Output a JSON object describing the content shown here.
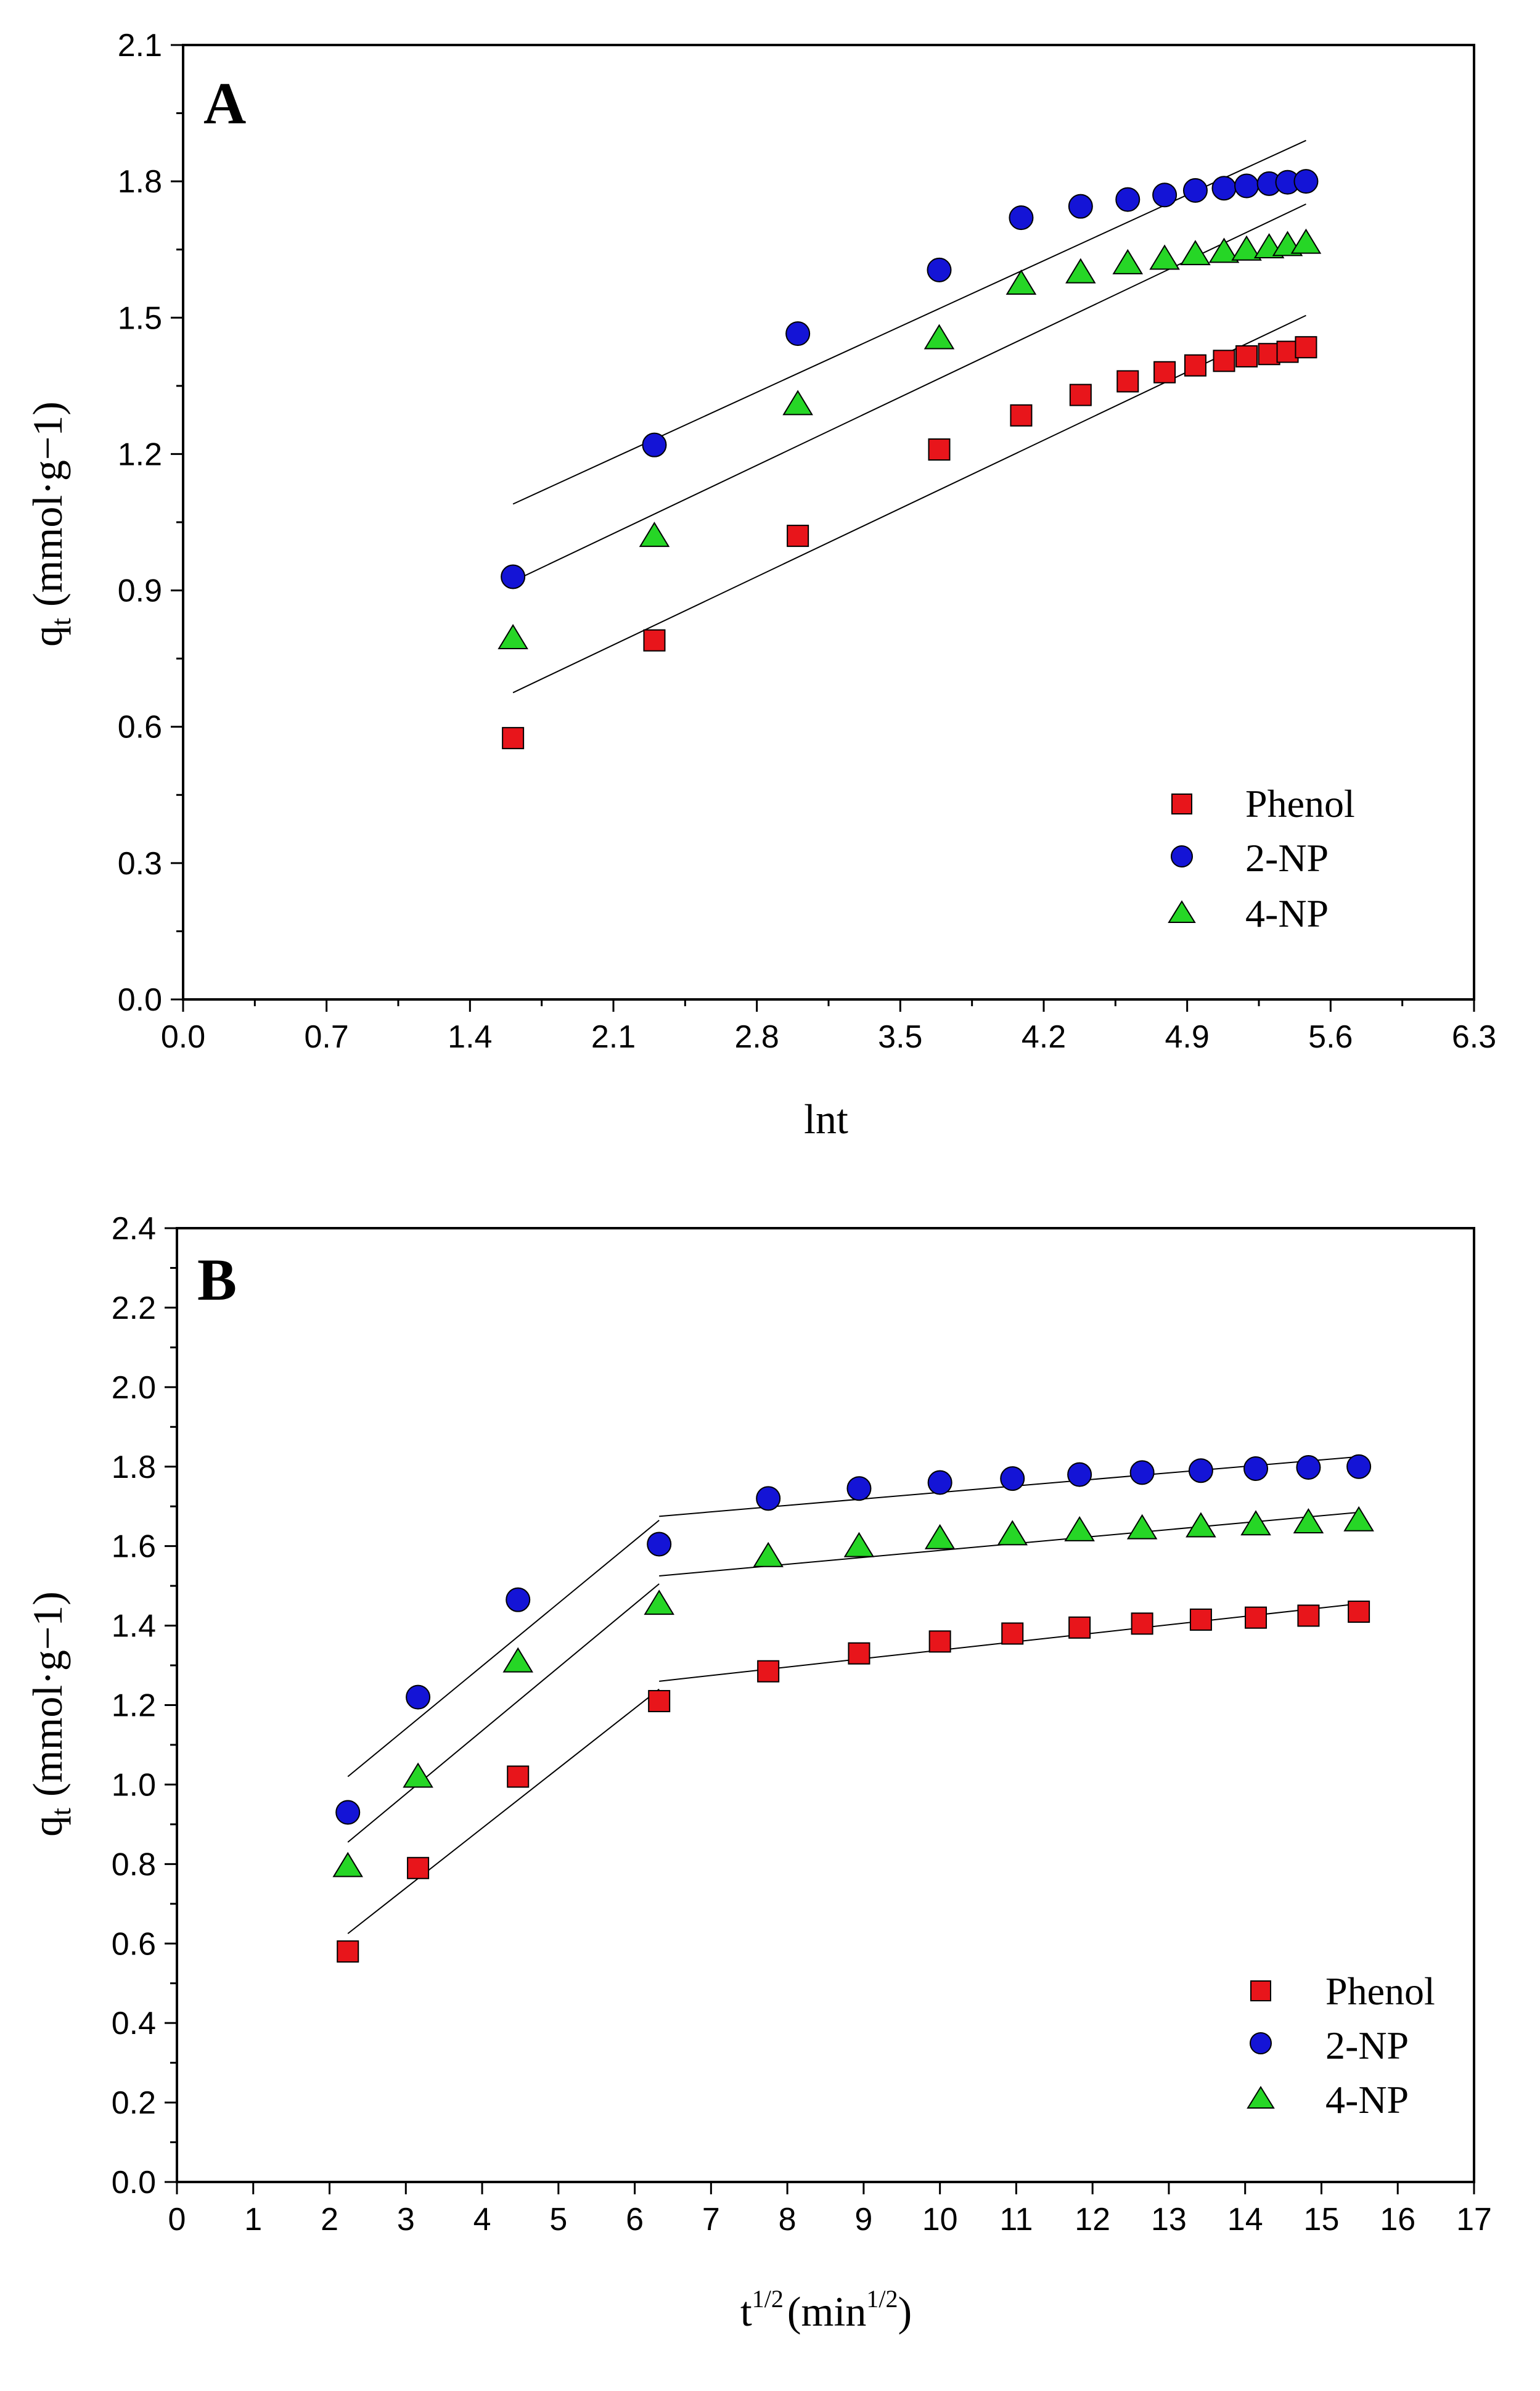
{
  "chart_data": [
    {
      "type": "scatter",
      "panel": "A",
      "title": "",
      "xlabel": "lnt",
      "ylabel": "q_t (mmol·g−1)",
      "ylabel_parts": {
        "base": "q",
        "sub": "t",
        "unit": "(mmol·g−1)"
      },
      "xlim": [
        0.0,
        6.3
      ],
      "ylim": [
        0.0,
        2.1
      ],
      "xticks": [
        "0.0",
        "0.7",
        "1.4",
        "2.1",
        "2.8",
        "3.5",
        "4.2",
        "4.9",
        "5.6",
        "6.3"
      ],
      "yticks": [
        "0.0",
        "0.3",
        "0.6",
        "0.9",
        "1.2",
        "1.5",
        "1.8",
        "2.1"
      ],
      "legend_position": "bottom-right",
      "series": [
        {
          "name": "Phenol",
          "marker": "square",
          "color": "#e8151b",
          "x": [
            1.61,
            2.3,
            3.0,
            3.69,
            4.09,
            4.38,
            4.61,
            4.79,
            4.94,
            5.08,
            5.19,
            5.3,
            5.39,
            5.48
          ],
          "y": [
            0.575,
            0.79,
            1.02,
            1.21,
            1.285,
            1.33,
            1.36,
            1.38,
            1.395,
            1.405,
            1.415,
            1.42,
            1.425,
            1.435
          ],
          "fit": {
            "x": [
              1.61,
              5.48
            ],
            "y": [
              0.675,
              1.505
            ]
          }
        },
        {
          "name": "2-NP",
          "marker": "circle",
          "color": "#1414d6",
          "x": [
            1.61,
            2.3,
            3.0,
            3.69,
            4.09,
            4.38,
            4.61,
            4.79,
            4.94,
            5.08,
            5.19,
            5.3,
            5.39,
            5.48
          ],
          "y": [
            0.93,
            1.22,
            1.465,
            1.605,
            1.72,
            1.745,
            1.76,
            1.77,
            1.78,
            1.785,
            1.79,
            1.795,
            1.798,
            1.8
          ],
          "fit": {
            "x": [
              1.61,
              5.48
            ],
            "y": [
              1.09,
              1.89
            ]
          }
        },
        {
          "name": "4-NP",
          "marker": "triangle",
          "color": "#26d626",
          "x": [
            1.61,
            2.3,
            3.0,
            3.69,
            4.09,
            4.38,
            4.61,
            4.79,
            4.94,
            5.08,
            5.19,
            5.3,
            5.39,
            5.48
          ],
          "y": [
            0.795,
            1.02,
            1.31,
            1.455,
            1.575,
            1.6,
            1.62,
            1.63,
            1.64,
            1.645,
            1.65,
            1.655,
            1.66,
            1.665
          ],
          "fit": {
            "x": [
              1.61,
              5.48
            ],
            "y": [
              0.92,
              1.75
            ]
          }
        }
      ]
    },
    {
      "type": "scatter",
      "panel": "B",
      "title": "",
      "xlabel": "t1/2 (min1/2)",
      "xlabel_parts": {
        "base": "t",
        "sup": "1/2",
        "unit_base": "(min",
        "unit_sup": "1/2",
        "unit_end": ")"
      },
      "ylabel": "q_t (mmol·g−1)",
      "ylabel_parts": {
        "base": "q",
        "sub": "t",
        "unit": "(mmol·g−1)"
      },
      "xlim": [
        0,
        17
      ],
      "ylim": [
        0.0,
        2.4
      ],
      "xticks": [
        "0",
        "1",
        "2",
        "3",
        "4",
        "5",
        "6",
        "7",
        "8",
        "9",
        "10",
        "11",
        "12",
        "13",
        "14",
        "15",
        "16",
        "17"
      ],
      "yticks": [
        "0.0",
        "0.2",
        "0.4",
        "0.6",
        "0.8",
        "1.0",
        "1.2",
        "1.4",
        "1.6",
        "1.8",
        "2.0",
        "2.2",
        "2.4"
      ],
      "legend_position": "bottom-right",
      "series": [
        {
          "name": "Phenol",
          "marker": "square",
          "color": "#e8151b",
          "x": [
            2.24,
            3.16,
            4.47,
            6.32,
            7.75,
            8.94,
            10.0,
            10.95,
            11.83,
            12.65,
            13.42,
            14.14,
            14.83,
            15.49
          ],
          "y": [
            0.58,
            0.79,
            1.02,
            1.21,
            1.285,
            1.33,
            1.36,
            1.38,
            1.395,
            1.405,
            1.415,
            1.42,
            1.425,
            1.435
          ],
          "fit": {
            "x": [
              2.24,
              6.32,
              6.32,
              15.49
            ],
            "y": [
              0.625,
              1.24,
              1.26,
              1.455
            ],
            "segments": [
              [
                0,
                1
              ],
              [
                2,
                3
              ]
            ]
          }
        },
        {
          "name": "2-NP",
          "marker": "circle",
          "color": "#1414d6",
          "x": [
            2.24,
            3.16,
            4.47,
            6.32,
            7.75,
            8.94,
            10.0,
            10.95,
            11.83,
            12.65,
            13.42,
            14.14,
            14.83,
            15.49
          ],
          "y": [
            0.93,
            1.22,
            1.465,
            1.605,
            1.72,
            1.745,
            1.76,
            1.77,
            1.78,
            1.785,
            1.79,
            1.795,
            1.798,
            1.8
          ],
          "fit": {
            "x": [
              2.24,
              6.32,
              6.32,
              15.49
            ],
            "y": [
              1.02,
              1.665,
              1.675,
              1.825
            ],
            "segments": [
              [
                0,
                1
              ],
              [
                2,
                3
              ]
            ]
          }
        },
        {
          "name": "4-NP",
          "marker": "triangle",
          "color": "#26d626",
          "x": [
            2.24,
            3.16,
            4.47,
            6.32,
            7.75,
            8.94,
            10.0,
            10.95,
            11.83,
            12.65,
            13.42,
            14.14,
            14.83,
            15.49
          ],
          "y": [
            0.795,
            1.02,
            1.31,
            1.455,
            1.575,
            1.6,
            1.62,
            1.63,
            1.64,
            1.645,
            1.65,
            1.655,
            1.66,
            1.665
          ],
          "fit": {
            "x": [
              2.24,
              6.32,
              6.32,
              15.49
            ],
            "y": [
              0.855,
              1.505,
              1.525,
              1.685
            ],
            "segments": [
              [
                0,
                1
              ],
              [
                2,
                3
              ]
            ]
          }
        }
      ]
    }
  ]
}
